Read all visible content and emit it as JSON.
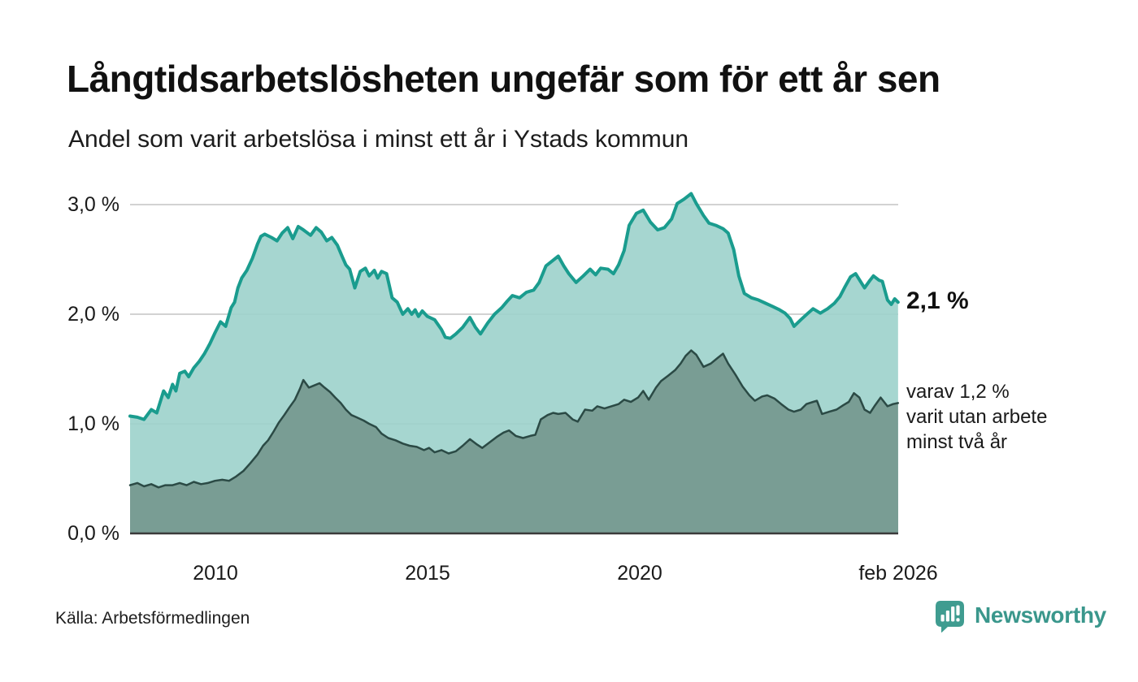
{
  "header": {
    "title": "Långtidsarbetslösheten ungefär som för ett år sen",
    "subtitle": "Andel som varit arbetslösa i minst ett år i Ystads kommun"
  },
  "footer": {
    "source": "Källa: Arbetsförmedlingen",
    "brand": "Newsworthy"
  },
  "colors": {
    "line_primary": "#1a9c8e",
    "fill_primary": "#9cd2cb",
    "line_secondary": "#2b4a45",
    "fill_secondary": "#75998f",
    "grid": "#d2d2d2",
    "axis_baseline": "#3a3a3a",
    "brand_teal": "#3f9c90",
    "text": "#1a1a1a"
  },
  "chart_data": {
    "type": "area",
    "title": "Långtidsarbetslösheten ungefär som för ett år sen",
    "subtitle": "Andel som varit arbetslösa i minst ett år i Ystads kommun",
    "unit": "%",
    "grid": true,
    "x_range": [
      2008.0,
      2026.083
    ],
    "ylim": [
      0,
      3.2
    ],
    "y_ticks": [
      {
        "label": "0,0 %",
        "value": 0
      },
      {
        "label": "1,0 %",
        "value": 1
      },
      {
        "label": "2,0 %",
        "value": 2
      },
      {
        "label": "3,0 %",
        "value": 3
      }
    ],
    "x_ticks": [
      {
        "label": "2010",
        "year": 2010
      },
      {
        "label": "2015",
        "year": 2015
      },
      {
        "label": "2020",
        "year": 2020
      },
      {
        "label": "feb 2026",
        "year": 2026.083
      }
    ],
    "annotations": {
      "end_label": "2,1 %",
      "secondary": [
        "varav 1,2 %",
        "varit utan arbete",
        "minst två år"
      ]
    },
    "series": [
      {
        "name": "Andel arbetslösa minst ett år",
        "last_value": 2.1,
        "points": [
          [
            2008.0,
            1.07
          ],
          [
            2008.17,
            1.06
          ],
          [
            2008.33,
            1.04
          ],
          [
            2008.5,
            1.13
          ],
          [
            2008.63,
            1.1
          ],
          [
            2008.79,
            1.3
          ],
          [
            2008.9,
            1.24
          ],
          [
            2009.0,
            1.36
          ],
          [
            2009.08,
            1.3
          ],
          [
            2009.17,
            1.46
          ],
          [
            2009.29,
            1.48
          ],
          [
            2009.38,
            1.43
          ],
          [
            2009.5,
            1.51
          ],
          [
            2009.63,
            1.57
          ],
          [
            2009.75,
            1.64
          ],
          [
            2009.88,
            1.73
          ],
          [
            2010.0,
            1.83
          ],
          [
            2010.13,
            1.93
          ],
          [
            2010.25,
            1.89
          ],
          [
            2010.38,
            2.06
          ],
          [
            2010.46,
            2.11
          ],
          [
            2010.54,
            2.24
          ],
          [
            2010.63,
            2.33
          ],
          [
            2010.75,
            2.4
          ],
          [
            2010.88,
            2.51
          ],
          [
            2011.0,
            2.64
          ],
          [
            2011.08,
            2.71
          ],
          [
            2011.17,
            2.73
          ],
          [
            2011.33,
            2.7
          ],
          [
            2011.46,
            2.67
          ],
          [
            2011.58,
            2.74
          ],
          [
            2011.71,
            2.79
          ],
          [
            2011.83,
            2.69
          ],
          [
            2011.96,
            2.8
          ],
          [
            2012.08,
            2.77
          ],
          [
            2012.25,
            2.72
          ],
          [
            2012.38,
            2.79
          ],
          [
            2012.5,
            2.75
          ],
          [
            2012.63,
            2.67
          ],
          [
            2012.75,
            2.7
          ],
          [
            2012.88,
            2.63
          ],
          [
            2013.0,
            2.52
          ],
          [
            2013.08,
            2.45
          ],
          [
            2013.17,
            2.41
          ],
          [
            2013.29,
            2.24
          ],
          [
            2013.42,
            2.39
          ],
          [
            2013.54,
            2.42
          ],
          [
            2013.63,
            2.35
          ],
          [
            2013.75,
            2.4
          ],
          [
            2013.83,
            2.33
          ],
          [
            2013.92,
            2.39
          ],
          [
            2014.04,
            2.37
          ],
          [
            2014.17,
            2.15
          ],
          [
            2014.29,
            2.11
          ],
          [
            2014.42,
            2.0
          ],
          [
            2014.54,
            2.05
          ],
          [
            2014.63,
            2.0
          ],
          [
            2014.71,
            2.04
          ],
          [
            2014.79,
            1.98
          ],
          [
            2014.88,
            2.03
          ],
          [
            2015.0,
            1.98
          ],
          [
            2015.17,
            1.95
          ],
          [
            2015.33,
            1.86
          ],
          [
            2015.42,
            1.79
          ],
          [
            2015.54,
            1.78
          ],
          [
            2015.67,
            1.82
          ],
          [
            2015.83,
            1.88
          ],
          [
            2016.0,
            1.97
          ],
          [
            2016.13,
            1.88
          ],
          [
            2016.25,
            1.82
          ],
          [
            2016.42,
            1.92
          ],
          [
            2016.58,
            2.0
          ],
          [
            2016.75,
            2.06
          ],
          [
            2016.88,
            2.12
          ],
          [
            2017.0,
            2.17
          ],
          [
            2017.17,
            2.15
          ],
          [
            2017.33,
            2.2
          ],
          [
            2017.5,
            2.22
          ],
          [
            2017.63,
            2.29
          ],
          [
            2017.79,
            2.44
          ],
          [
            2017.92,
            2.48
          ],
          [
            2018.08,
            2.53
          ],
          [
            2018.21,
            2.44
          ],
          [
            2018.33,
            2.37
          ],
          [
            2018.5,
            2.29
          ],
          [
            2018.67,
            2.35
          ],
          [
            2018.83,
            2.41
          ],
          [
            2018.96,
            2.36
          ],
          [
            2019.08,
            2.42
          ],
          [
            2019.25,
            2.41
          ],
          [
            2019.38,
            2.37
          ],
          [
            2019.5,
            2.45
          ],
          [
            2019.63,
            2.58
          ],
          [
            2019.75,
            2.81
          ],
          [
            2019.92,
            2.92
          ],
          [
            2020.08,
            2.95
          ],
          [
            2020.25,
            2.84
          ],
          [
            2020.42,
            2.77
          ],
          [
            2020.58,
            2.79
          ],
          [
            2020.75,
            2.87
          ],
          [
            2020.88,
            3.01
          ],
          [
            2021.04,
            3.05
          ],
          [
            2021.21,
            3.1
          ],
          [
            2021.33,
            3.01
          ],
          [
            2021.5,
            2.9
          ],
          [
            2021.63,
            2.83
          ],
          [
            2021.79,
            2.81
          ],
          [
            2021.96,
            2.78
          ],
          [
            2022.08,
            2.74
          ],
          [
            2022.21,
            2.59
          ],
          [
            2022.33,
            2.35
          ],
          [
            2022.46,
            2.19
          ],
          [
            2022.63,
            2.15
          ],
          [
            2022.79,
            2.13
          ],
          [
            2022.96,
            2.1
          ],
          [
            2023.13,
            2.07
          ],
          [
            2023.29,
            2.04
          ],
          [
            2023.42,
            2.01
          ],
          [
            2023.54,
            1.96
          ],
          [
            2023.63,
            1.89
          ],
          [
            2023.79,
            1.95
          ],
          [
            2023.96,
            2.01
          ],
          [
            2024.08,
            2.05
          ],
          [
            2024.25,
            2.01
          ],
          [
            2024.42,
            2.05
          ],
          [
            2024.58,
            2.1
          ],
          [
            2024.71,
            2.16
          ],
          [
            2024.83,
            2.25
          ],
          [
            2024.96,
            2.34
          ],
          [
            2025.08,
            2.37
          ],
          [
            2025.21,
            2.29
          ],
          [
            2025.29,
            2.24
          ],
          [
            2025.42,
            2.31
          ],
          [
            2025.5,
            2.35
          ],
          [
            2025.63,
            2.31
          ],
          [
            2025.71,
            2.3
          ],
          [
            2025.83,
            2.13
          ],
          [
            2025.92,
            2.09
          ],
          [
            2026.0,
            2.14
          ],
          [
            2026.08,
            2.11
          ]
        ]
      },
      {
        "name": "Andel utan arbete minst två år",
        "last_value": 1.2,
        "points": [
          [
            2008.0,
            0.44
          ],
          [
            2008.17,
            0.46
          ],
          [
            2008.33,
            0.43
          ],
          [
            2008.5,
            0.45
          ],
          [
            2008.67,
            0.42
          ],
          [
            2008.83,
            0.44
          ],
          [
            2009.0,
            0.44
          ],
          [
            2009.17,
            0.46
          ],
          [
            2009.33,
            0.44
          ],
          [
            2009.5,
            0.47
          ],
          [
            2009.67,
            0.45
          ],
          [
            2009.83,
            0.46
          ],
          [
            2010.0,
            0.48
          ],
          [
            2010.17,
            0.49
          ],
          [
            2010.33,
            0.48
          ],
          [
            2010.5,
            0.52
          ],
          [
            2010.67,
            0.57
          ],
          [
            2010.83,
            0.64
          ],
          [
            2011.0,
            0.72
          ],
          [
            2011.13,
            0.8
          ],
          [
            2011.25,
            0.85
          ],
          [
            2011.38,
            0.93
          ],
          [
            2011.5,
            1.01
          ],
          [
            2011.63,
            1.08
          ],
          [
            2011.75,
            1.15
          ],
          [
            2011.88,
            1.22
          ],
          [
            2012.0,
            1.32
          ],
          [
            2012.08,
            1.4
          ],
          [
            2012.21,
            1.33
          ],
          [
            2012.33,
            1.35
          ],
          [
            2012.46,
            1.37
          ],
          [
            2012.58,
            1.33
          ],
          [
            2012.71,
            1.29
          ],
          [
            2012.83,
            1.24
          ],
          [
            2012.96,
            1.19
          ],
          [
            2013.08,
            1.13
          ],
          [
            2013.21,
            1.08
          ],
          [
            2013.33,
            1.06
          ],
          [
            2013.5,
            1.03
          ],
          [
            2013.63,
            1.0
          ],
          [
            2013.79,
            0.97
          ],
          [
            2013.92,
            0.91
          ],
          [
            2014.08,
            0.87
          ],
          [
            2014.25,
            0.85
          ],
          [
            2014.42,
            0.82
          ],
          [
            2014.58,
            0.8
          ],
          [
            2014.75,
            0.79
          ],
          [
            2014.92,
            0.76
          ],
          [
            2015.04,
            0.78
          ],
          [
            2015.17,
            0.74
          ],
          [
            2015.33,
            0.76
          ],
          [
            2015.5,
            0.73
          ],
          [
            2015.67,
            0.75
          ],
          [
            2015.83,
            0.8
          ],
          [
            2016.0,
            0.86
          ],
          [
            2016.17,
            0.81
          ],
          [
            2016.29,
            0.78
          ],
          [
            2016.46,
            0.83
          ],
          [
            2016.63,
            0.88
          ],
          [
            2016.79,
            0.92
          ],
          [
            2016.92,
            0.94
          ],
          [
            2017.08,
            0.89
          ],
          [
            2017.25,
            0.87
          ],
          [
            2017.42,
            0.89
          ],
          [
            2017.54,
            0.9
          ],
          [
            2017.67,
            1.04
          ],
          [
            2017.83,
            1.08
          ],
          [
            2017.96,
            1.1
          ],
          [
            2018.08,
            1.09
          ],
          [
            2018.25,
            1.1
          ],
          [
            2018.42,
            1.04
          ],
          [
            2018.54,
            1.02
          ],
          [
            2018.71,
            1.13
          ],
          [
            2018.88,
            1.12
          ],
          [
            2019.0,
            1.16
          ],
          [
            2019.17,
            1.14
          ],
          [
            2019.33,
            1.16
          ],
          [
            2019.5,
            1.18
          ],
          [
            2019.63,
            1.22
          ],
          [
            2019.79,
            1.2
          ],
          [
            2019.96,
            1.24
          ],
          [
            2020.08,
            1.3
          ],
          [
            2020.21,
            1.22
          ],
          [
            2020.38,
            1.33
          ],
          [
            2020.5,
            1.39
          ],
          [
            2020.67,
            1.44
          ],
          [
            2020.83,
            1.49
          ],
          [
            2020.96,
            1.55
          ],
          [
            2021.08,
            1.62
          ],
          [
            2021.21,
            1.67
          ],
          [
            2021.33,
            1.63
          ],
          [
            2021.5,
            1.52
          ],
          [
            2021.67,
            1.55
          ],
          [
            2021.83,
            1.6
          ],
          [
            2021.96,
            1.64
          ],
          [
            2022.08,
            1.55
          ],
          [
            2022.25,
            1.45
          ],
          [
            2022.42,
            1.34
          ],
          [
            2022.58,
            1.26
          ],
          [
            2022.71,
            1.21
          ],
          [
            2022.88,
            1.25
          ],
          [
            2023.0,
            1.26
          ],
          [
            2023.17,
            1.23
          ],
          [
            2023.33,
            1.18
          ],
          [
            2023.5,
            1.13
          ],
          [
            2023.63,
            1.11
          ],
          [
            2023.79,
            1.13
          ],
          [
            2023.92,
            1.18
          ],
          [
            2024.08,
            1.2
          ],
          [
            2024.17,
            1.21
          ],
          [
            2024.29,
            1.09
          ],
          [
            2024.46,
            1.11
          ],
          [
            2024.63,
            1.13
          ],
          [
            2024.79,
            1.17
          ],
          [
            2024.92,
            1.2
          ],
          [
            2025.04,
            1.28
          ],
          [
            2025.17,
            1.24
          ],
          [
            2025.29,
            1.13
          ],
          [
            2025.42,
            1.1
          ],
          [
            2025.54,
            1.17
          ],
          [
            2025.67,
            1.24
          ],
          [
            2025.83,
            1.16
          ],
          [
            2025.96,
            1.18
          ],
          [
            2026.08,
            1.19
          ]
        ]
      }
    ]
  }
}
